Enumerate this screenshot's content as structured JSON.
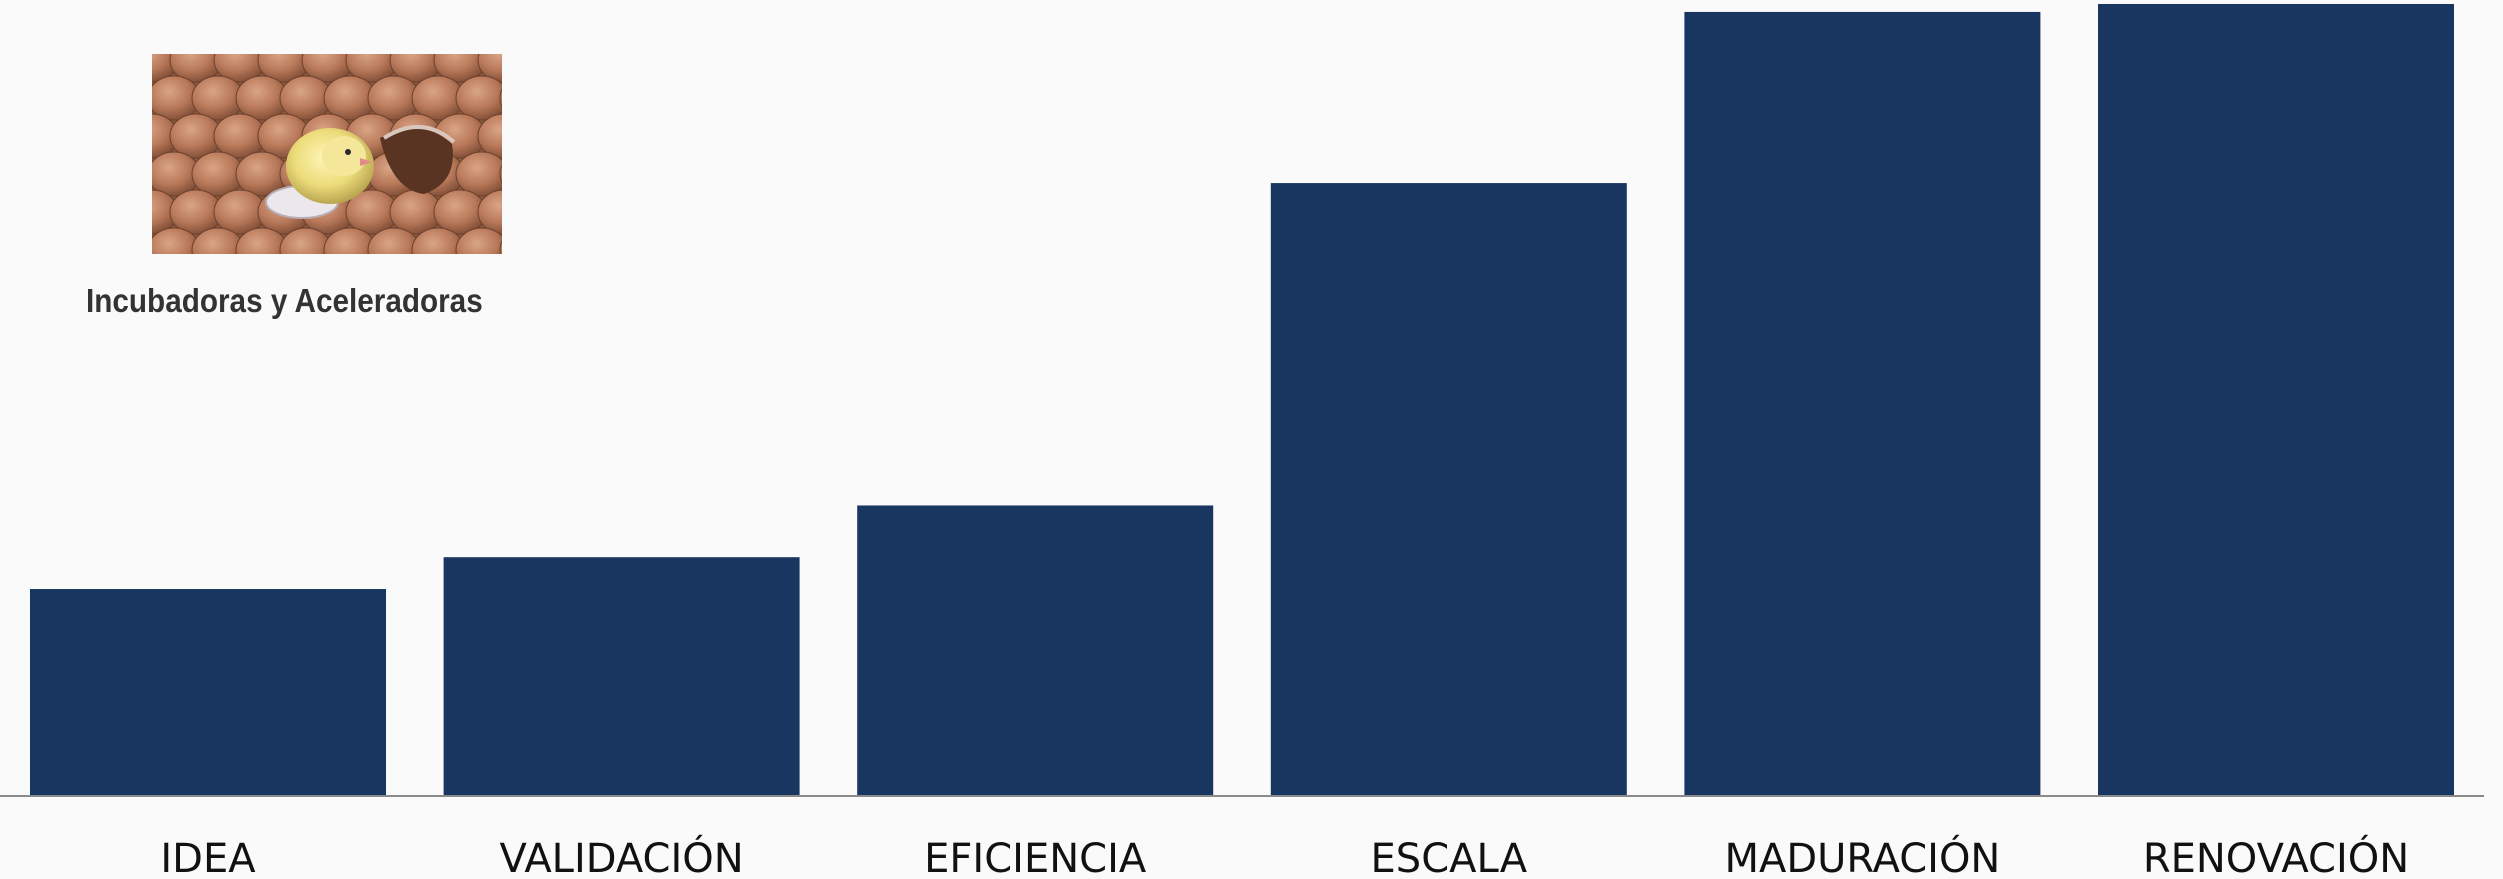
{
  "chart_data": {
    "type": "bar",
    "categories": [
      "IDEA",
      "VALIDACIÓN",
      "EFICIENCIA",
      "ESCALA",
      "MADURACIÓN",
      "RENOVACIÓN"
    ],
    "values": [
      26,
      30,
      36.5,
      77,
      98.5,
      99.5
    ],
    "ylim": [
      0,
      100
    ],
    "axis_visible": false,
    "grid": false,
    "legend": "none",
    "bar_color": "#183660",
    "axis_line_color": "#8a8a8a"
  },
  "inset": {
    "caption": "Incubadoras y Aceleradoras",
    "image_icon": "hatching-chick-among-eggs-image"
  }
}
